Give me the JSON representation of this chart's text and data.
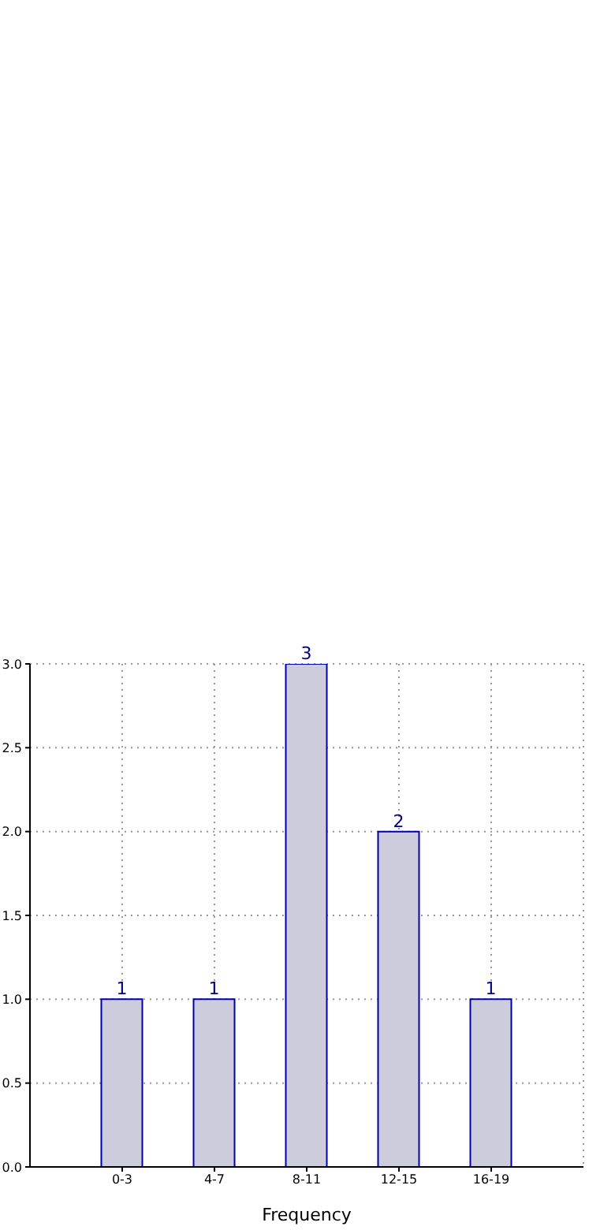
{
  "chart_data": {
    "type": "bar",
    "xlabel": "Frequency",
    "categories": [
      "0-3",
      "4-7",
      "8-11",
      "12-15",
      "16-19"
    ],
    "values": [
      1,
      1,
      3,
      2,
      1
    ],
    "color": "#ccccdd",
    "ylim": [
      0,
      3
    ],
    "yticks": [
      {
        "value": 0,
        "label": "0.0"
      },
      {
        "value": 0.5,
        "label": "0.5"
      },
      {
        "value": 1,
        "label": "1.0"
      },
      {
        "value": 1.5,
        "label": "1.5"
      },
      {
        "value": 2,
        "label": "2.0"
      },
      {
        "value": 2.5,
        "label": "2.5"
      },
      {
        "value": 3,
        "label": "3.0"
      }
    ],
    "grid": true,
    "data_labels": true
  }
}
